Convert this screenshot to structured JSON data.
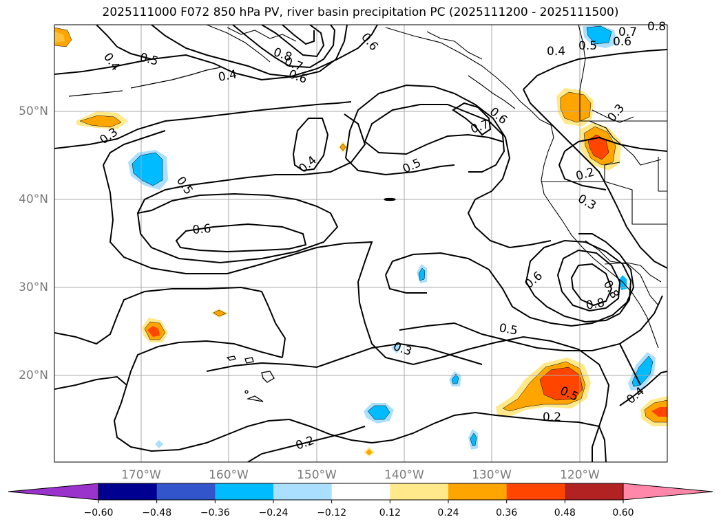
{
  "title": "2025111000 F072 850 hPa PV, river basin precipitation PC (2025111200 - 2025111500)",
  "latitude_labels": [
    "50°N",
    "40°N",
    "30°N",
    "20°N"
  ],
  "longitude_labels": [
    "170°W",
    "160°W",
    "150°W",
    "140°W",
    "130°W",
    "120°W"
  ],
  "contour_labels": {
    "c1": "0.4",
    "c2": "0.5",
    "c3": "0.4",
    "c4": "0.3",
    "c5": "0.5",
    "c6": "0.6",
    "c7": "0.4",
    "c8": "0.5",
    "c9": "0.6",
    "c10": "0.7",
    "c11": "0.6",
    "c12": "0.4",
    "c13": "0.5",
    "c14": "0.6",
    "c15": "0.3",
    "c16": "0.2",
    "c17": "0.3",
    "c18": "0.6",
    "c19": "0.8",
    "c20": "0.8",
    "c21": "0.5",
    "c22": "0.3",
    "c23": "0.5",
    "c24": "0.2",
    "c25": "0.2",
    "c26": "0.4",
    "c27": "0.7",
    "c28": "0.8",
    "c29": "0.7",
    "c30": "0.8",
    "c31": "0.6"
  },
  "colorbar": {
    "ticks": [
      "−0.60",
      "−0.48",
      "−0.36",
      "−0.24",
      "−0.12",
      "0.12",
      "0.24",
      "0.36",
      "0.48",
      "0.60"
    ],
    "colors": [
      "#9933cc",
      "#000090",
      "#3355cc",
      "#00bbff",
      "#aadfff",
      "#ffffff",
      "#ffe98a",
      "#ffa500",
      "#ff4500",
      "#b22222",
      "#ff88aa"
    ]
  }
}
